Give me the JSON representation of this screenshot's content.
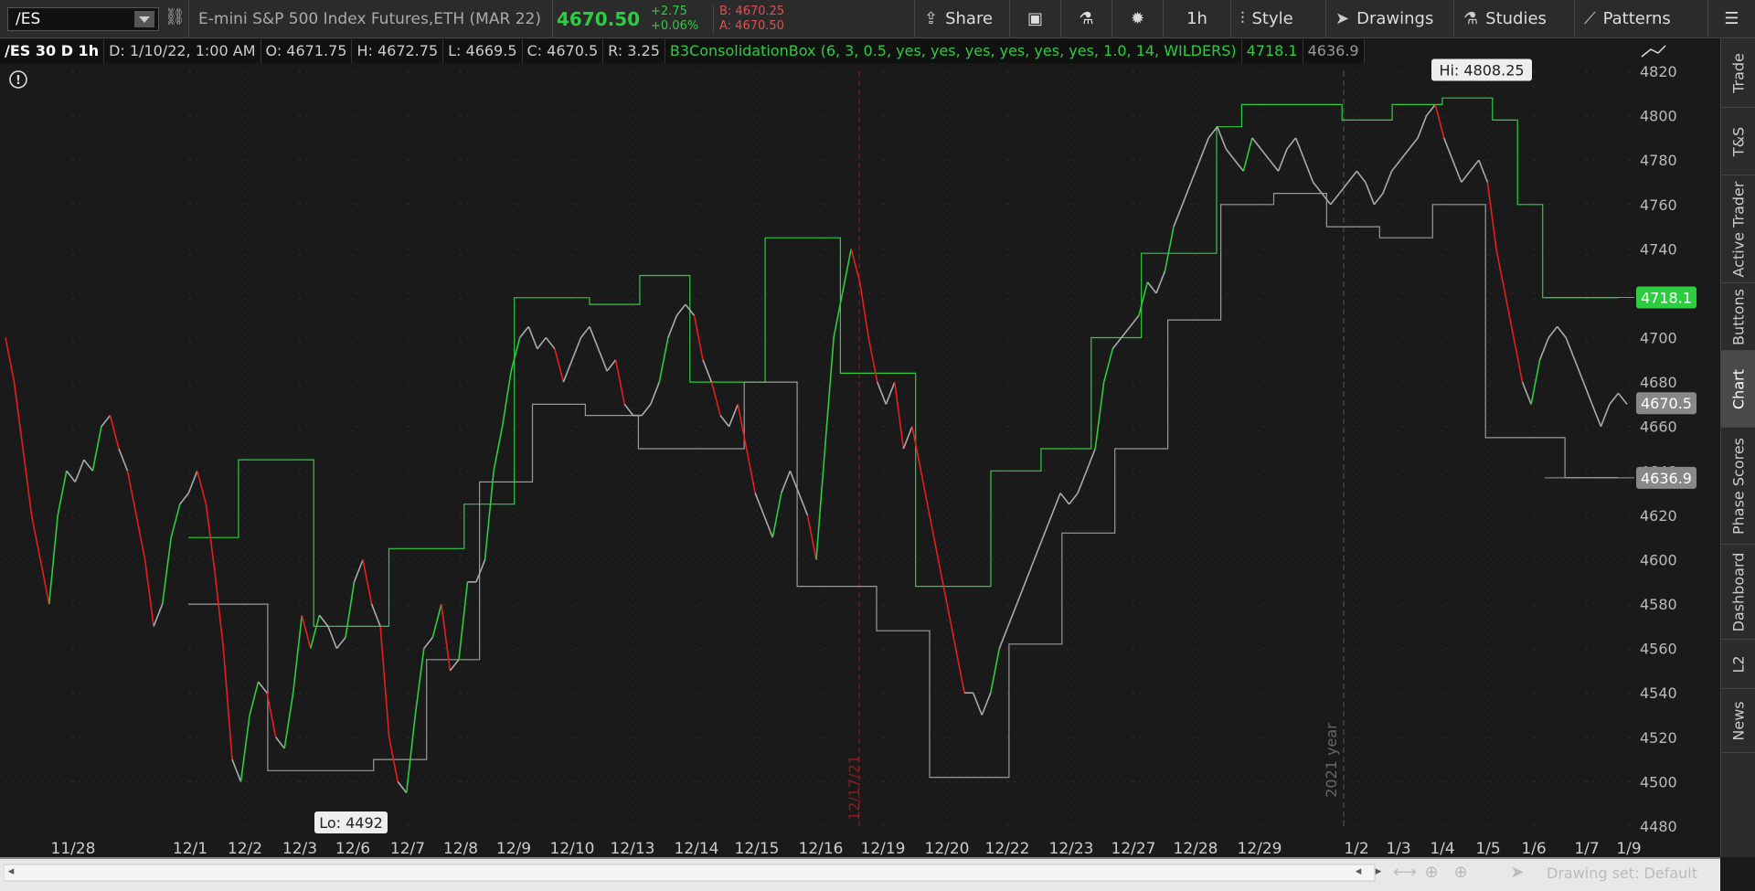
{
  "toolbar": {
    "symbol": "/ES",
    "description": "E-mini S&P 500 Index Futures,ETH (MAR 22)",
    "last_price": "4670.50",
    "change": "+2.75",
    "change_pct": "+0.06%",
    "bid": "B: 4670.25",
    "ask": "A: 4670.50",
    "share_label": "Share",
    "timeframe_label": "1h",
    "style_label": "Style",
    "drawings_label": "Drawings",
    "studies_label": "Studies",
    "patterns_label": "Patterns"
  },
  "infobar": {
    "symbol": "/ES 30 D 1h",
    "date": "D: 1/10/22, 1:00 AM",
    "open": "O: 4671.75",
    "high": "H: 4672.75",
    "low": "L: 4669.5",
    "close": "C: 4670.5",
    "range": "R: 3.25",
    "study": "B3ConsolidationBox (6, 3, 0.5, yes, yes, yes, yes, yes, yes, 1.0, 14, WILDERS)",
    "study_val1": "4718.1",
    "study_val2": "4636.9"
  },
  "right_tabs": [
    "Trade",
    "T&S",
    "Active Trader",
    "Buttons",
    "Chart",
    "Phase Scores",
    "Dashboard",
    "L2",
    "News"
  ],
  "active_tab": "Chart",
  "bottom": {
    "drawing_set": "Drawing set: Default"
  },
  "colors": {
    "up": "#2ecc40",
    "down": "#e81e1e",
    "neutral": "#aaaaaa",
    "box_upper": "#2ecc40",
    "box_lower": "#999999",
    "background": "#1a1a1a"
  },
  "chart_data": {
    "type": "line",
    "title": "/ES 30 D 1h",
    "ylim": [
      4480,
      4820
    ],
    "y_ticks": [
      4820,
      4800,
      4780,
      4760,
      4740,
      4720,
      4700,
      4680,
      4660,
      4640,
      4620,
      4600,
      4580,
      4560,
      4540,
      4520,
      4500,
      4480
    ],
    "x_tick_labels": [
      "11/28",
      "12/1",
      "12/2",
      "12/3",
      "12/6",
      "12/7",
      "12/8",
      "12/9",
      "12/10",
      "12/13",
      "12/14",
      "12/15",
      "12/16",
      "12/19",
      "12/20",
      "12/22",
      "12/23",
      "12/27",
      "12/28",
      "12/29",
      "1/2",
      "1/3",
      "1/4",
      "1/5",
      "1/6",
      "1/7",
      "1/9"
    ],
    "price_labels": {
      "upper_box": "4718.1",
      "last": "4670.5",
      "lower_box": "4636.9"
    },
    "annotations": {
      "high": "Hi: 4808.25",
      "low": "Lo: 4492",
      "marker_date": "12/17/21",
      "year_marker": "2021 year"
    },
    "series": [
      {
        "values": [
          4700,
          4680,
          4650,
          4620,
          4600,
          4580,
          4620,
          4640,
          4635,
          4645,
          4640,
          4660,
          4665,
          4650,
          4640,
          4620,
          4600,
          4570,
          4580,
          4610,
          4625,
          4630,
          4640,
          4625,
          4595,
          4560,
          4510,
          4500,
          4530,
          4545,
          4540,
          4520,
          4515,
          4540,
          4575,
          4560,
          4575,
          4570,
          4560,
          4565,
          4590,
          4600,
          4580,
          4570,
          4520,
          4500,
          4495,
          4530,
          4560,
          4565,
          4580,
          4550,
          4555,
          4590,
          4590,
          4600,
          4640,
          4660,
          4685,
          4700,
          4705,
          4695,
          4700,
          4695,
          4680,
          4690,
          4700,
          4705,
          4695,
          4685,
          4690,
          4670,
          4665,
          4665,
          4670,
          4680,
          4700,
          4710,
          4715,
          4710,
          4690,
          4680,
          4665,
          4660,
          4670,
          4650,
          4630,
          4620,
          4610,
          4630,
          4640,
          4630,
          4620,
          4600,
          4650,
          4700,
          4720,
          4740,
          4725,
          4700,
          4680,
          4670,
          4680,
          4650,
          4660,
          4640,
          4620,
          4600,
          4580,
          4560,
          4540,
          4540,
          4530,
          4540,
          4560,
          4570,
          4580,
          4590,
          4600,
          4610,
          4620,
          4630,
          4625,
          4630,
          4640,
          4650,
          4680,
          4695,
          4700,
          4705,
          4710,
          4725,
          4720,
          4730,
          4750,
          4760,
          4770,
          4780,
          4790,
          4795,
          4785,
          4780,
          4775,
          4790,
          4785,
          4780,
          4775,
          4785,
          4790,
          4780,
          4770,
          4765,
          4760,
          4765,
          4770,
          4775,
          4770,
          4760,
          4765,
          4775,
          4780,
          4785,
          4790,
          4800,
          4805,
          4790,
          4780,
          4770,
          4775,
          4780,
          4770,
          4740,
          4720,
          4700,
          4680,
          4670,
          4690,
          4700,
          4705,
          4700,
          4690,
          4680,
          4670,
          4660,
          4670,
          4675,
          4670
        ]
      }
    ],
    "box_upper": [
      [
        4610,
        4610,
        4645,
        4645,
        4645,
        4570,
        4570,
        4570,
        4605,
        4605,
        4605,
        4625,
        4625,
        4718,
        4718,
        4718,
        4715,
        4715,
        4728,
        4728,
        4680,
        4680,
        4680,
        4745,
        4745,
        4745,
        4684,
        4684,
        4684,
        4588,
        4588,
        4588,
        4640,
        4640,
        4650,
        4650,
        4700,
        4700,
        4738,
        4738,
        4738,
        4795,
        4805,
        4805,
        4805,
        4805,
        4798,
        4798,
        4805,
        4805,
        4808,
        4808,
        4798,
        4760,
        4718,
        4718,
        4718
      ]
    ],
    "box_lower": [
      [
        4580,
        4580,
        4580,
        4505,
        4505,
        4505,
        4505,
        4510,
        4510,
        4555,
        4555,
        4635,
        4635,
        4670,
        4670,
        4665,
        4665,
        4650,
        4650,
        4650,
        4650,
        4680,
        4680,
        4588,
        4588,
        4588,
        4568,
        4568,
        4502,
        4502,
        4502,
        4562,
        4562,
        4612,
        4612,
        4650,
        4650,
        4708,
        4708,
        4760,
        4760,
        4765,
        4765,
        4750,
        4750,
        4745,
        4745,
        4760,
        4760,
        4655,
        4655,
        4655,
        4637,
        4637
      ]
    ]
  }
}
